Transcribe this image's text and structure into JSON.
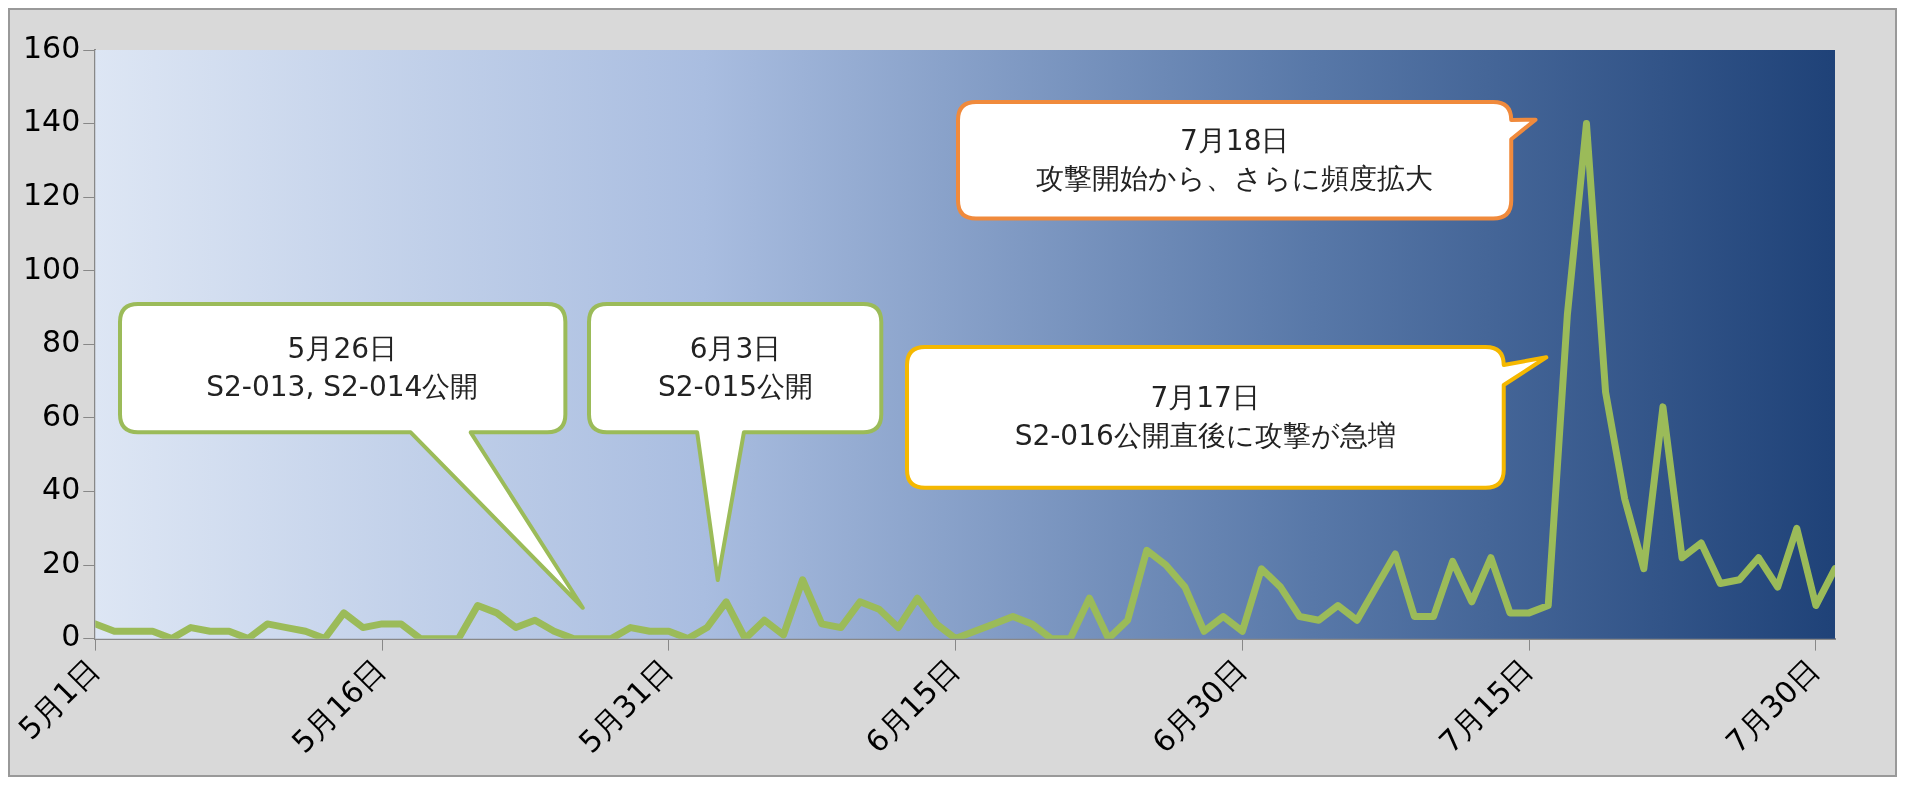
{
  "chart_data": {
    "type": "line",
    "x": [
      "--05-01",
      "--05-02",
      "--05-03",
      "--05-04",
      "--05-05",
      "--05-06",
      "--05-07",
      "--05-08",
      "--05-09",
      "--05-10",
      "--05-11",
      "--05-12",
      "--05-13",
      "--05-14",
      "--05-15",
      "--05-16",
      "--05-17",
      "--05-18",
      "--05-19",
      "--05-20",
      "--05-21",
      "--05-22",
      "--05-23",
      "--05-24",
      "--05-25",
      "--05-26",
      "--05-27",
      "--05-28",
      "--05-29",
      "--05-30",
      "--05-31",
      "--06-01",
      "--06-02",
      "--06-03",
      "--06-04",
      "--06-05",
      "--06-06",
      "--06-07",
      "--06-08",
      "--06-09",
      "--06-10",
      "--06-11",
      "--06-12",
      "--06-13",
      "--06-14",
      "--06-15",
      "--06-16",
      "--06-17",
      "--06-18",
      "--06-19",
      "--06-20",
      "--06-21",
      "--06-22",
      "--06-23",
      "--06-24",
      "--06-25",
      "--06-26",
      "--06-27",
      "--06-28",
      "--06-29",
      "--06-30",
      "--07-01",
      "--07-02",
      "--07-03",
      "--07-04",
      "--07-05",
      "--07-06",
      "--07-07",
      "--07-08",
      "--07-09",
      "--07-10",
      "--07-11",
      "--07-12",
      "--07-13",
      "--07-14",
      "--07-15",
      "--07-16",
      "--07-17",
      "--07-18",
      "--07-19",
      "--07-20",
      "--07-21",
      "--07-22",
      "--07-23",
      "--07-24",
      "--07-25",
      "--07-26",
      "--07-27",
      "--07-28",
      "--07-29",
      "--07-30",
      "--07-31"
    ],
    "series": [
      {
        "color": "#9bbb59",
        "values": [
          4,
          2,
          2,
          2,
          0,
          3,
          2,
          2,
          0,
          4,
          3,
          2,
          0,
          7,
          3,
          4,
          4,
          0,
          0,
          0,
          9,
          7,
          3,
          5,
          2,
          0,
          0,
          0,
          3,
          2,
          2,
          0,
          3,
          10,
          0,
          5,
          1,
          16,
          4,
          3,
          10,
          8,
          3,
          11,
          4,
          0,
          2,
          4,
          6,
          4,
          0,
          0,
          11,
          0,
          5,
          24,
          20,
          14,
          2,
          6,
          2,
          19,
          14,
          6,
          5,
          9,
          5,
          14,
          23,
          6,
          6,
          21,
          10,
          22,
          7,
          7,
          9,
          88,
          140,
          67,
          38,
          19,
          63,
          22,
          26,
          15,
          16,
          22,
          14,
          30,
          9,
          19
        ]
      }
    ],
    "xlim": [
      "--05-01",
      "--07-31"
    ],
    "xticks": [
      {
        "value": "--05-01",
        "label": "5月1日"
      },
      {
        "value": "--05-16",
        "label": "5月16日"
      },
      {
        "value": "--05-31",
        "label": "5月31日"
      },
      {
        "value": "--06-15",
        "label": "6月15日"
      },
      {
        "value": "--06-30",
        "label": "6月30日"
      },
      {
        "value": "--07-15",
        "label": "7月15日"
      },
      {
        "value": "--07-30",
        "label": "7月30日"
      }
    ],
    "ylim": [
      0,
      160
    ],
    "yticks": [
      0,
      20,
      40,
      60,
      80,
      100,
      120,
      140,
      160
    ],
    "legend": false,
    "marker": "none",
    "line_style": "solid",
    "annotations": [
      "5月26日",
      "S2-013, S2-014公開",
      "6月3日",
      "S2-015公開",
      "7月17日",
      "S2-016公開直後に攻撃が急増",
      "7月18日",
      "攻撃開始から、さらに頻度拡大"
    ]
  }
}
